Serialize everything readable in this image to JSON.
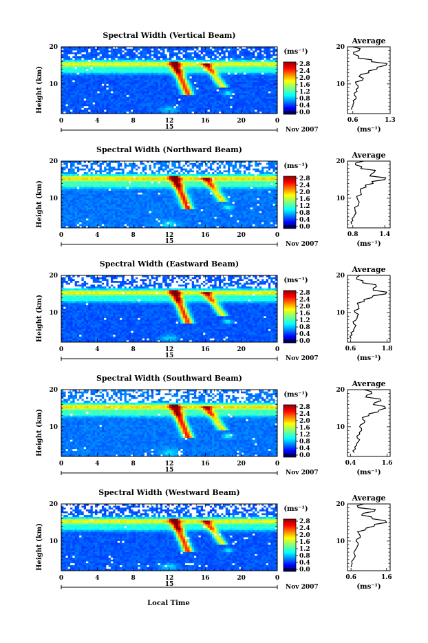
{
  "figure": {
    "bottom_xlabel": "Local Time",
    "date_label": "Nov 2007",
    "day_label": "15",
    "colorbar_unit": "(ms⁻¹)",
    "colorbar_ticks": [
      "2.8",
      "2.4",
      "2.0",
      "1.6",
      "1.2",
      "0.8",
      "0.4",
      "0.0"
    ],
    "average_title": "Average",
    "average_xlabel": "(ms⁻¹)",
    "ylabel": "Height (km)"
  },
  "chart_data": [
    {
      "type": "heatmap",
      "title": "Spectral Width (Vertical Beam)",
      "xlabel": "Local Time",
      "ylabel": "Height (km)",
      "x_ticks": [
        "0",
        "4",
        "8",
        "12",
        "16",
        "20",
        "0"
      ],
      "y_ticks": [
        "20",
        "10"
      ],
      "xlim": [
        0,
        24
      ],
      "ylim": [
        2,
        20
      ],
      "colorbar": {
        "label": "(ms⁻¹)",
        "range": [
          0.0,
          3.0
        ],
        "ticks": [
          2.8,
          2.4,
          2.0,
          1.6,
          1.2,
          0.8,
          0.4,
          0.0
        ]
      },
      "average_profile": {
        "title": "Average",
        "xlabel": "(ms⁻¹)",
        "x_ticks": [
          "0.6",
          "1.3"
        ],
        "xlim": [
          0.5,
          1.3
        ],
        "height_km": [
          3,
          4,
          5,
          6,
          7,
          8,
          9,
          10,
          11,
          12,
          13,
          14,
          15,
          16,
          17,
          18,
          19,
          20
        ],
        "values": [
          0.58,
          0.6,
          0.62,
          0.66,
          0.63,
          0.68,
          0.7,
          0.66,
          0.78,
          0.72,
          0.9,
          1.05,
          1.22,
          0.95,
          0.7,
          0.62,
          0.72,
          0.6
        ]
      }
    },
    {
      "type": "heatmap",
      "title": "Spectral Width (Northward Beam)",
      "xlabel": "Local Time",
      "ylabel": "Height (km)",
      "x_ticks": [
        "0",
        "4",
        "8",
        "12",
        "16",
        "20",
        "0"
      ],
      "y_ticks": [
        "20",
        "10"
      ],
      "xlim": [
        0,
        24
      ],
      "ylim": [
        2,
        20
      ],
      "colorbar": {
        "label": "(ms⁻¹)",
        "range": [
          0.0,
          3.0
        ],
        "ticks": [
          2.8,
          2.4,
          2.0,
          1.6,
          1.2,
          0.8,
          0.4,
          0.0
        ]
      },
      "average_profile": {
        "title": "Average",
        "xlabel": "(ms⁻¹)",
        "x_ticks": [
          "0.8",
          "1.4"
        ],
        "xlim": [
          0.7,
          1.5
        ],
        "height_km": [
          3,
          4,
          5,
          6,
          7,
          8,
          9,
          10,
          11,
          12,
          13,
          14,
          15,
          16,
          17,
          18,
          19,
          20
        ],
        "values": [
          0.78,
          0.8,
          0.82,
          0.86,
          0.84,
          0.9,
          0.92,
          0.88,
          0.96,
          0.94,
          1.05,
          1.18,
          1.4,
          1.12,
          1.2,
          0.95,
          0.85,
          1.0
        ]
      }
    },
    {
      "type": "heatmap",
      "title": "Spectral Width (Eastward Beam)",
      "xlabel": "Local Time",
      "ylabel": "Height (km)",
      "x_ticks": [
        "0",
        "4",
        "8",
        "12",
        "16",
        "20",
        "0"
      ],
      "y_ticks": [
        "20",
        "10"
      ],
      "xlim": [
        0,
        24
      ],
      "ylim": [
        2,
        20
      ],
      "colorbar": {
        "label": "(ms⁻¹)",
        "range": [
          0.0,
          3.0
        ],
        "ticks": [
          2.8,
          2.4,
          2.0,
          1.6,
          1.2,
          0.8,
          0.4,
          0.0
        ]
      },
      "average_profile": {
        "title": "Average",
        "xlabel": "(ms⁻¹)",
        "x_ticks": [
          "0.6",
          "1.8"
        ],
        "xlim": [
          0.5,
          1.9
        ],
        "height_km": [
          3,
          4,
          5,
          6,
          7,
          8,
          9,
          10,
          11,
          12,
          13,
          14,
          15,
          16,
          17,
          18,
          19,
          20
        ],
        "values": [
          0.62,
          0.65,
          0.7,
          0.74,
          0.7,
          0.78,
          0.82,
          0.75,
          0.88,
          0.85,
          1.05,
          1.3,
          1.75,
          1.35,
          1.45,
          1.0,
          0.8,
          0.9
        ]
      }
    },
    {
      "type": "heatmap",
      "title": "Spectral Width (Southward Beam)",
      "xlabel": "Local Time",
      "ylabel": "Height (km)",
      "x_ticks": [
        "0",
        "4",
        "8",
        "12",
        "16",
        "20",
        "0"
      ],
      "y_ticks": [
        "20",
        "10"
      ],
      "xlim": [
        0,
        24
      ],
      "ylim": [
        2,
        20
      ],
      "colorbar": {
        "label": "(ms⁻¹)",
        "range": [
          0.0,
          3.0
        ],
        "ticks": [
          2.8,
          2.4,
          2.0,
          1.6,
          1.2,
          0.8,
          0.4,
          0.0
        ]
      },
      "average_profile": {
        "title": "Average",
        "xlabel": "(ms⁻¹)",
        "x_ticks": [
          "0.4",
          "1.6"
        ],
        "xlim": [
          0.3,
          1.7
        ],
        "height_km": [
          3,
          4,
          5,
          6,
          7,
          8,
          9,
          10,
          11,
          12,
          13,
          14,
          15,
          16,
          17,
          18,
          19,
          20
        ],
        "values": [
          0.52,
          0.56,
          0.6,
          0.66,
          0.62,
          0.7,
          0.76,
          0.7,
          0.84,
          0.8,
          1.0,
          1.3,
          1.55,
          1.15,
          1.4,
          0.9,
          1.1,
          0.85
        ]
      }
    },
    {
      "type": "heatmap",
      "title": "Spectral Width (Westward Beam)",
      "xlabel": "Local Time",
      "ylabel": "Height (km)",
      "x_ticks": [
        "0",
        "4",
        "8",
        "12",
        "16",
        "20",
        "0"
      ],
      "y_ticks": [
        "20",
        "10"
      ],
      "xlim": [
        0,
        24
      ],
      "ylim": [
        2,
        20
      ],
      "colorbar": {
        "label": "(ms⁻¹)",
        "range": [
          0.0,
          3.0
        ],
        "ticks": [
          2.8,
          2.4,
          2.0,
          1.6,
          1.2,
          0.8,
          0.4,
          0.0
        ]
      },
      "average_profile": {
        "title": "Average",
        "xlabel": "(ms⁻¹)",
        "x_ticks": [
          "0.6",
          "1.6"
        ],
        "xlim": [
          0.5,
          1.7
        ],
        "height_km": [
          3,
          4,
          5,
          6,
          7,
          8,
          9,
          10,
          11,
          12,
          13,
          14,
          15,
          16,
          17,
          18,
          19,
          20
        ],
        "values": [
          0.6,
          0.63,
          0.66,
          0.72,
          0.68,
          0.75,
          0.8,
          0.74,
          0.86,
          0.82,
          1.0,
          1.25,
          1.6,
          1.2,
          0.9,
          1.25,
          0.8,
          0.95
        ]
      }
    }
  ]
}
